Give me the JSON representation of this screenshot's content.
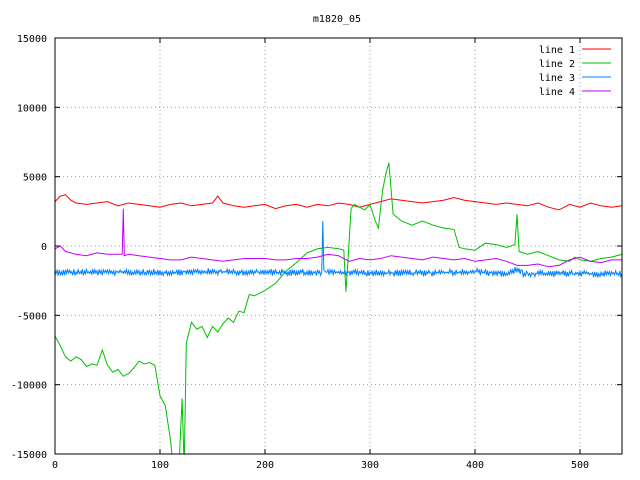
{
  "chart_data": {
    "type": "line",
    "title": "m1820_05",
    "xlabel": "",
    "ylabel": "",
    "xlim": [
      0,
      540
    ],
    "ylim": [
      -15000,
      15000
    ],
    "x_ticks": [
      "0",
      "100",
      "200",
      "300",
      "400",
      "500"
    ],
    "y_ticks": [
      "-15000",
      "-10000",
      "-5000",
      "0",
      "5000",
      "10000",
      "15000"
    ],
    "grid": true,
    "legend_position": "top-right",
    "series": [
      {
        "name": "line 1",
        "color": "#ff0000",
        "x": [
          0,
          5,
          10,
          15,
          20,
          30,
          40,
          50,
          60,
          70,
          80,
          90,
          100,
          110,
          120,
          130,
          140,
          150,
          155,
          160,
          165,
          170,
          180,
          190,
          200,
          210,
          220,
          230,
          240,
          250,
          260,
          270,
          280,
          290,
          300,
          310,
          320,
          330,
          340,
          350,
          360,
          370,
          380,
          390,
          400,
          410,
          420,
          430,
          440,
          450,
          460,
          470,
          480,
          490,
          500,
          510,
          520,
          530,
          540
        ],
        "y": [
          3200,
          3600,
          3700,
          3300,
          3100,
          3000,
          3100,
          3200,
          2900,
          3100,
          3000,
          2900,
          2800,
          3000,
          3100,
          2900,
          3000,
          3100,
          3600,
          3100,
          3000,
          2900,
          2800,
          2900,
          3000,
          2700,
          2900,
          3000,
          2800,
          3000,
          2900,
          3100,
          3000,
          2800,
          3000,
          3200,
          3400,
          3300,
          3200,
          3100,
          3200,
          3300,
          3500,
          3300,
          3200,
          3100,
          3000,
          3100,
          3000,
          2900,
          3100,
          2800,
          2600,
          3000,
          2800,
          3100,
          2900,
          2800,
          2900
        ]
      },
      {
        "name": "line 2",
        "color": "#00c000",
        "x": [
          0,
          5,
          10,
          15,
          20,
          25,
          30,
          35,
          40,
          45,
          50,
          55,
          60,
          65,
          70,
          75,
          80,
          85,
          90,
          95,
          100,
          105,
          110,
          112,
          118,
          121,
          123,
          125,
          130,
          135,
          140,
          145,
          150,
          155,
          160,
          165,
          170,
          175,
          180,
          185,
          190,
          200,
          210,
          220,
          230,
          240,
          250,
          260,
          270,
          275,
          277,
          279,
          282,
          285,
          290,
          295,
          300,
          305,
          308,
          312,
          315,
          318,
          322,
          330,
          340,
          350,
          360,
          370,
          380,
          385,
          390,
          400,
          410,
          420,
          430,
          438,
          440,
          442,
          450,
          460,
          470,
          480,
          490,
          495,
          500,
          510,
          520,
          530,
          540
        ],
        "y": [
          -6500,
          -7200,
          -8000,
          -8300,
          -8000,
          -8200,
          -8700,
          -8500,
          -8600,
          -7500,
          -8600,
          -9100,
          -8900,
          -9400,
          -9200,
          -8800,
          -8300,
          -8500,
          -8400,
          -8600,
          -10800,
          -11500,
          -14000,
          -15500,
          -16000,
          -11000,
          -16000,
          -7000,
          -5500,
          -6000,
          -5800,
          -6600,
          -5800,
          -6200,
          -5600,
          -5200,
          -5500,
          -4700,
          -4800,
          -3500,
          -3600,
          -3200,
          -2700,
          -1800,
          -1200,
          -500,
          -200,
          -100,
          -200,
          -300,
          -3300,
          -1000,
          2700,
          3000,
          2800,
          2600,
          3000,
          1800,
          1300,
          4000,
          5200,
          6000,
          2300,
          1800,
          1500,
          1800,
          1500,
          1300,
          1200,
          -100,
          -200,
          -300,
          200,
          100,
          -100,
          100,
          2300,
          -400,
          -600,
          -400,
          -700,
          -1000,
          -1100,
          -800,
          -1000,
          -1100,
          -900,
          -800,
          -600
        ]
      },
      {
        "name": "line 3",
        "color": "#0080ff",
        "x": [
          0,
          50,
          100,
          150,
          200,
          250,
          254,
          255,
          256,
          258,
          260,
          280,
          300,
          350,
          400,
          430,
          440,
          445,
          450,
          500,
          540
        ],
        "y": [
          -1900,
          -1900,
          -1900,
          -1850,
          -1900,
          -1900,
          -1900,
          1800,
          -1700,
          -1900,
          -1900,
          -1900,
          -1950,
          -1950,
          -1850,
          -2000,
          -1700,
          -2000,
          -2000,
          -2000,
          -2000
        ],
        "noise_amplitude": 250
      },
      {
        "name": "line 4",
        "color": "#c000ff",
        "x": [
          0,
          5,
          10,
          20,
          30,
          40,
          50,
          60,
          64,
          65,
          66,
          70,
          80,
          90,
          100,
          110,
          120,
          130,
          140,
          150,
          160,
          170,
          180,
          190,
          200,
          210,
          220,
          230,
          240,
          250,
          260,
          270,
          280,
          290,
          300,
          310,
          320,
          330,
          340,
          350,
          360,
          370,
          380,
          390,
          400,
          410,
          420,
          430,
          440,
          450,
          460,
          470,
          480,
          490,
          500,
          510,
          520,
          530,
          540
        ],
        "y": [
          -200,
          0,
          -400,
          -600,
          -700,
          -500,
          -600,
          -600,
          -600,
          2700,
          -700,
          -600,
          -700,
          -800,
          -900,
          -1000,
          -1000,
          -800,
          -900,
          -1000,
          -1100,
          -1000,
          -900,
          -900,
          -900,
          -1000,
          -1000,
          -900,
          -900,
          -800,
          -600,
          -700,
          -1100,
          -900,
          -1000,
          -900,
          -700,
          -800,
          -900,
          -1000,
          -800,
          -900,
          -1000,
          -900,
          -1100,
          -1000,
          -900,
          -1100,
          -1400,
          -1400,
          -1300,
          -1500,
          -1400,
          -1000,
          -800,
          -1100,
          -1200,
          -1000,
          -1000
        ]
      }
    ]
  }
}
